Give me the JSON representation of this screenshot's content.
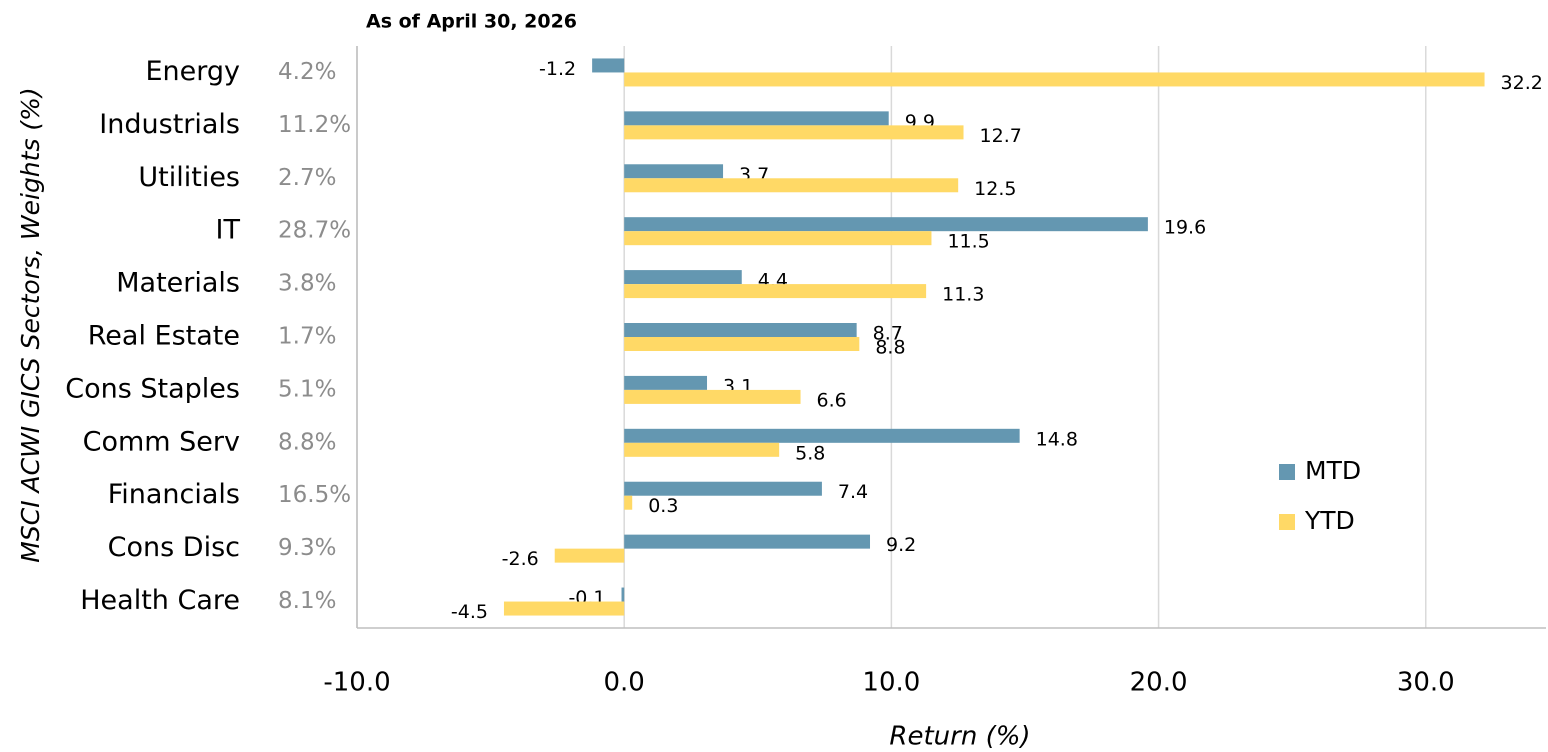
{
  "chart_data": {
    "type": "hbar",
    "title": "As of April 30, 2026",
    "ylabel": "MSCI ACWI GICS Sectors, Weights (%)",
    "xlabel": "Return (%)",
    "categories": [
      "Energy",
      "Industrials",
      "Utilities",
      "IT",
      "Materials",
      "Real Estate",
      "Cons Staples",
      "Comm Serv",
      "Financials",
      "Cons Disc",
      "Health Care"
    ],
    "weight_labels": [
      "4.2%",
      "11.2%",
      "2.7%",
      "28.7%",
      "3.8%",
      "1.7%",
      "5.1%",
      "8.8%",
      "16.5%",
      "9.3%",
      "8.1%"
    ],
    "series": [
      {
        "name": "MTD",
        "color": "#6497b1",
        "values": [
          -1.2,
          9.9,
          3.7,
          19.6,
          4.4,
          8.7,
          3.1,
          14.8,
          7.4,
          9.2,
          -0.1
        ]
      },
      {
        "name": "YTD",
        "color": "#ffd966",
        "values": [
          32.2,
          12.7,
          12.5,
          11.5,
          11.3,
          8.8,
          6.6,
          5.8,
          0.3,
          -2.6,
          -4.5
        ]
      }
    ],
    "xlim": [
      -10,
      34.5
    ],
    "xticks": [
      {
        "value": -10,
        "label": "-10.0"
      },
      {
        "value": 0,
        "label": "0.0"
      },
      {
        "value": 10,
        "label": "10.0"
      },
      {
        "value": 20,
        "label": "20.0"
      },
      {
        "value": 30,
        "label": "30.0"
      }
    ],
    "grid": true,
    "legend": "right"
  }
}
